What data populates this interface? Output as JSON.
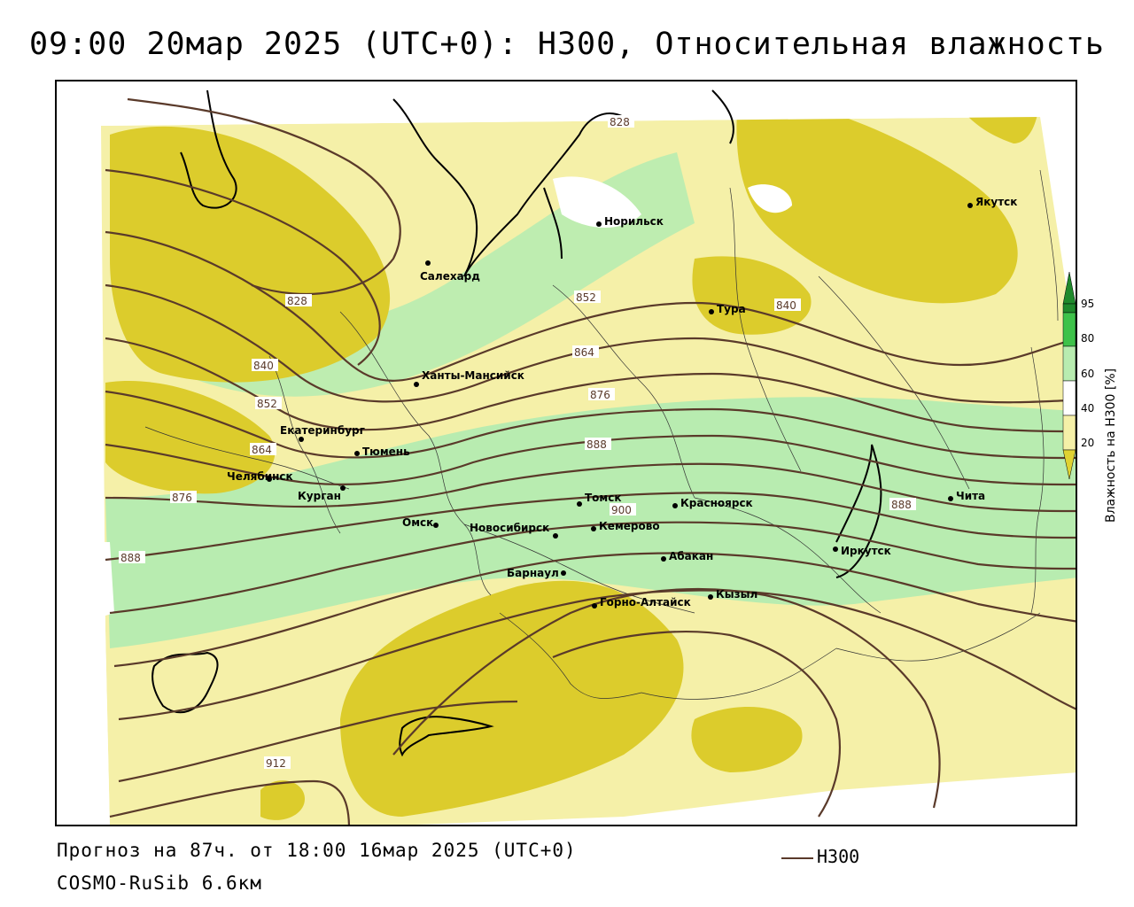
{
  "title": "09:00 20мар 2025 (UTC+0): H300, Относительная влажность",
  "footer": {
    "forecast": "Прогноз на 87ч. от 18:00 16мар 2025 (UTC+0)",
    "model": "COSMO-RuSib 6.6км",
    "line_legend": "H300"
  },
  "colorbar": {
    "title": "Влажность на H300 [%]",
    "ticks": [
      "95",
      "80",
      "60",
      "40",
      "20"
    ],
    "colors": [
      "#1f8a2c",
      "#3ec24a",
      "#b8ecb0",
      "#ffffff",
      "#f5f0a8",
      "#e0d232"
    ]
  },
  "colors": {
    "contour": "#5a3a2a",
    "humid_high": "#b8ecb0",
    "dry_light": "#f5f0a8",
    "dry_strong": "#dccc2c",
    "border": "#333333"
  },
  "cities": [
    "Якутск",
    "Норильск",
    "Салехард",
    "Тура",
    "Ханты-Мансийск",
    "Екатеринбург",
    "Тюмень",
    "Челябинск",
    "Курган",
    "Омск",
    "Новосибирск",
    "Томск",
    "Кемерово",
    "Красноярск",
    "Барнаул",
    "Абакан",
    "Горно-Алтайск",
    "Кызыл",
    "Иркутск",
    "Чита"
  ],
  "contour_labels": [
    "828",
    "828",
    "840",
    "840",
    "852",
    "852",
    "864",
    "864",
    "876",
    "876",
    "888",
    "888",
    "888",
    "900",
    "912"
  ]
}
